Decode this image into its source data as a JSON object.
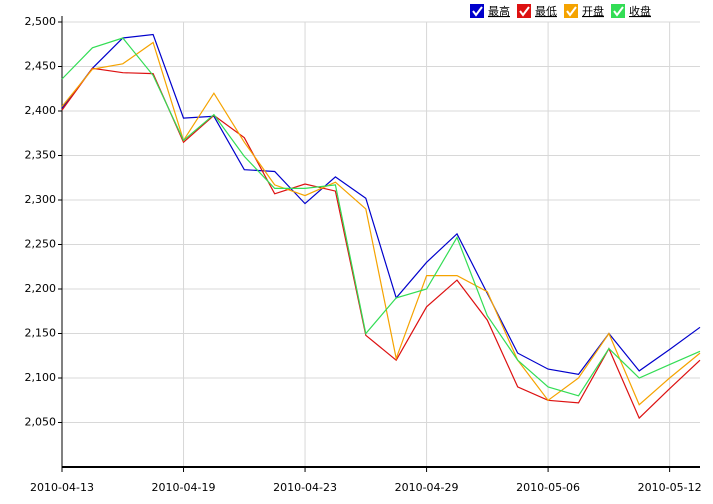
{
  "chart_data": {
    "type": "line",
    "categories": [
      "2010-04-13",
      null,
      null,
      null,
      "2010-04-19",
      null,
      null,
      null,
      "2010-04-23",
      null,
      null,
      null,
      "2010-04-29",
      null,
      null,
      null,
      "2010-05-06",
      null,
      null,
      null,
      "2010-05-12",
      null
    ],
    "series": [
      {
        "name": "最高",
        "color": "#0000cc",
        "values": [
          2403,
          2448,
          2482,
          2486,
          2392,
          2394,
          2334,
          2332,
          2296,
          2326,
          2302,
          2190,
          2230,
          2262,
          2195,
          2128,
          2110,
          2104,
          2150,
          2108,
          2132,
          2157
        ]
      },
      {
        "name": "最低",
        "color": "#dd1111",
        "values": [
          2401,
          2448,
          2443,
          2442,
          2365,
          2395,
          2370,
          2307,
          2318,
          2310,
          2148,
          2120,
          2180,
          2210,
          2165,
          2090,
          2075,
          2072,
          2133,
          2055,
          2088,
          2120
        ]
      },
      {
        "name": "开盘",
        "color": "#f5a300",
        "values": [
          2405,
          2447,
          2453,
          2477,
          2367,
          2420,
          2365,
          2317,
          2305,
          2320,
          2290,
          2122,
          2215,
          2215,
          2197,
          2120,
          2075,
          2100,
          2150,
          2070,
          2100,
          2128
        ]
      },
      {
        "name": "收盘",
        "color": "#33dd55",
        "values": [
          2436,
          2471,
          2482,
          2440,
          2367,
          2396,
          2349,
          2313,
          2313,
          2317,
          2150,
          2190,
          2200,
          2258,
          2170,
          2120,
          2090,
          2080,
          2133,
          2100,
          2115,
          2130
        ]
      }
    ],
    "ylim": [
      2000,
      2500
    ],
    "yticks": [
      {
        "value": 2050,
        "label": "2,050"
      },
      {
        "value": 2100,
        "label": "2,100"
      },
      {
        "value": 2150,
        "label": "2,150"
      },
      {
        "value": 2200,
        "label": "2,200"
      },
      {
        "value": 2250,
        "label": "2,250"
      },
      {
        "value": 2300,
        "label": "2,300"
      },
      {
        "value": 2350,
        "label": "2,350"
      },
      {
        "value": 2400,
        "label": "2,400"
      },
      {
        "value": 2450,
        "label": "2,450"
      },
      {
        "value": 2500,
        "label": "2,500"
      }
    ],
    "grid": true,
    "legend": "top-right"
  }
}
